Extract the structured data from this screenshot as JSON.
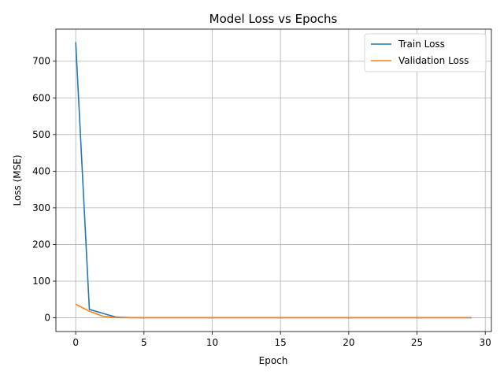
{
  "chart_data": {
    "type": "line",
    "title": "Model Loss vs Epochs",
    "xlabel": "Epoch",
    "ylabel": "Loss (MSE)",
    "xlim": [
      -1.45,
      30.45
    ],
    "ylim": [
      -37.5,
      787.5
    ],
    "xticks": [
      0,
      5,
      10,
      15,
      20,
      25,
      30
    ],
    "yticks": [
      0,
      100,
      200,
      300,
      400,
      500,
      600,
      700
    ],
    "grid": true,
    "legend_position": "upper right",
    "x": [
      0,
      1,
      2,
      3,
      4,
      5,
      6,
      7,
      8,
      9,
      10,
      11,
      12,
      13,
      14,
      15,
      16,
      17,
      18,
      19,
      20,
      21,
      22,
      23,
      24,
      25,
      26,
      27,
      28,
      29
    ],
    "series": [
      {
        "name": "Train Loss",
        "color": "#1f77b4",
        "values": [
          752,
          23,
          12,
          1.5,
          0.5,
          0.3,
          0.2,
          0.2,
          0.2,
          0.2,
          0.2,
          0.2,
          0.2,
          0.2,
          0.2,
          0.2,
          0.2,
          0.2,
          0.2,
          0.2,
          0.2,
          0.2,
          0.2,
          0.2,
          0.2,
          0.2,
          0.2,
          0.2,
          0.2,
          0.2
        ]
      },
      {
        "name": "Validation Loss",
        "color": "#ff7f0e",
        "values": [
          37,
          18,
          4,
          0.5,
          0.2,
          0.2,
          0.2,
          0.2,
          0.2,
          0.2,
          0.2,
          0.2,
          0.2,
          0.2,
          0.2,
          0.2,
          0.2,
          0.2,
          0.2,
          0.2,
          0.2,
          0.2,
          0.2,
          0.2,
          0.2,
          0.2,
          0.2,
          0.2,
          0.2,
          0.2
        ]
      }
    ]
  }
}
